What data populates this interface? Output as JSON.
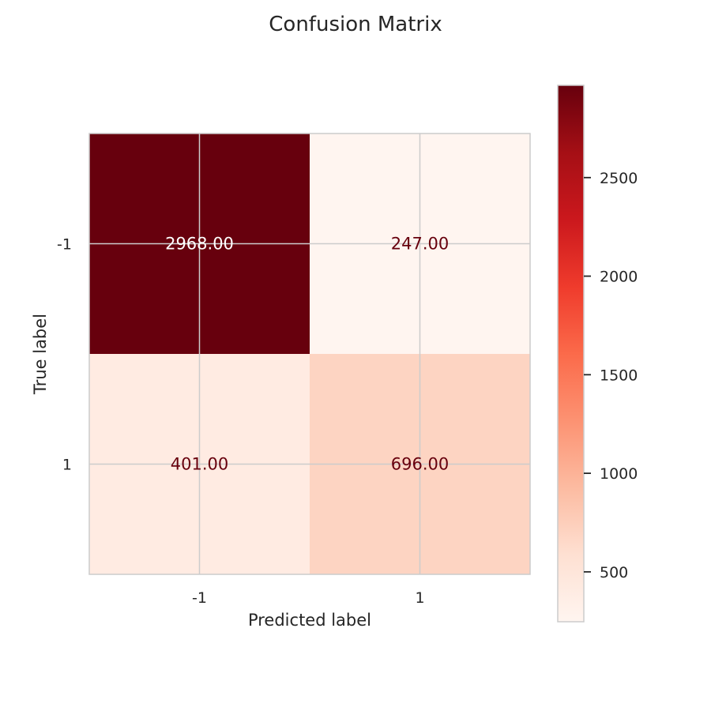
{
  "chart_data": {
    "type": "heatmap",
    "title": "Confusion Matrix",
    "xlabel": "Predicted label",
    "ylabel": "True label",
    "x_categories": [
      "-1",
      "1"
    ],
    "y_categories": [
      "-1",
      "1"
    ],
    "values": [
      [
        2968,
        247
      ],
      [
        401,
        696
      ]
    ],
    "cell_labels": [
      [
        "2968.00",
        "247.00"
      ],
      [
        "401.00",
        "696.00"
      ]
    ],
    "colormap": "Reds",
    "colorbar": {
      "range": [
        247,
        2968
      ],
      "ticks": [
        500,
        1000,
        1500,
        2000,
        2500
      ],
      "tick_labels": [
        "500",
        "1000",
        "1500",
        "2000",
        "2500"
      ]
    },
    "grid": true
  },
  "colors": {
    "text": "#262626",
    "gridline": "#cccccc",
    "dark_cell_text": "#ffffff",
    "light_cell_text": "#67000d",
    "colormap_stops": [
      "#fff5f0",
      "#fee0d2",
      "#fcbba1",
      "#fc9272",
      "#fb6a4a",
      "#ef3b2c",
      "#cb181d",
      "#a50f15",
      "#67000d"
    ]
  }
}
